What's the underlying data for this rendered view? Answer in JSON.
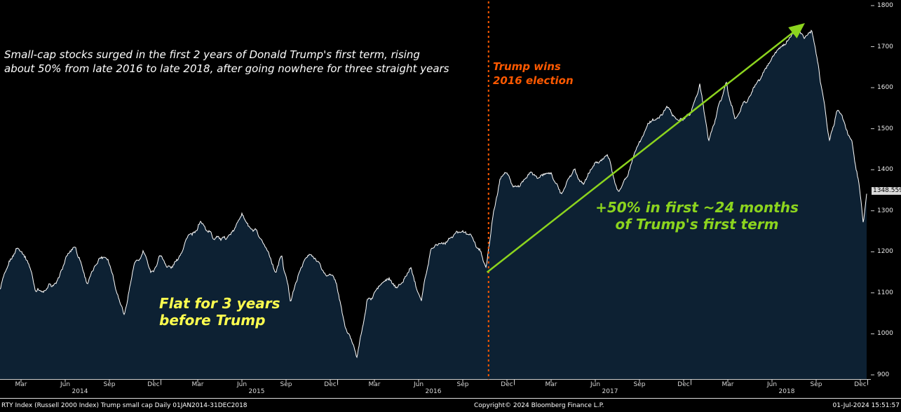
{
  "colors": {
    "background": "#000000",
    "area_fill": "#0d2133",
    "line": "#ffffff",
    "election": "#ff5900",
    "green": "#8cd41e",
    "yellow": "#ffff4f",
    "axis": "#d0d0d0"
  },
  "annotations": {
    "note": "Small-cap stocks surged in the first 2 years of Donald Trump's first term, rising\nabout 50% from late 2016 to late 2018, after going nowhere for three straight years",
    "election_label": "Trump wins\n2016 election",
    "surge_label": "+50% in first ~24 months\nof Trump's first term",
    "flat_label": "Flat for 3 years\nbefore Trump"
  },
  "footer": {
    "left": "RTY Index (Russell 2000 Index) Trump small cap  Daily 01JAN2014-31DEC2018",
    "center": "Copyright© 2024 Bloomberg Finance L.P.",
    "right": "01-Jul-2024 15:51:57"
  },
  "chart_data": {
    "type": "area",
    "title": "RTY Index (Russell 2000 Index) Trump small cap, Daily 01JAN2014-31DEC2018",
    "ylim": [
      900,
      1800
    ],
    "y_ticks": [
      900,
      1000,
      1100,
      1200,
      1300,
      1400,
      1500,
      1600,
      1700,
      1800
    ],
    "x_axis": {
      "quarter_labels": [
        "Mar",
        "Jun",
        "Sep",
        "Dec"
      ],
      "years": [
        "2014",
        "2015",
        "2016",
        "2017",
        "2018"
      ]
    },
    "election_month": 34.25,
    "arrow": {
      "from": [
        34.15,
        1150
      ],
      "to": [
        55.55,
        1752
      ]
    },
    "last_price": 1348.559,
    "last_price_label": "1348.559",
    "points_unit": "[months since Jan 2014, index value]",
    "points": [
      [
        0,
        1160
      ],
      [
        0.5,
        1181
      ],
      [
        1.0,
        1098
      ],
      [
        1.7,
        1183
      ],
      [
        2.2,
        1208
      ],
      [
        3.0,
        1173
      ],
      [
        3.5,
        1107
      ],
      [
        4.2,
        1102
      ],
      [
        5.0,
        1133
      ],
      [
        5.8,
        1190
      ],
      [
        6.2,
        1205
      ],
      [
        7.0,
        1112
      ],
      [
        7.8,
        1180
      ],
      [
        8.4,
        1172
      ],
      [
        9.0,
        1105
      ],
      [
        9.5,
        1042
      ],
      [
        10.2,
        1172
      ],
      [
        10.8,
        1190
      ],
      [
        11.3,
        1142
      ],
      [
        11.9,
        1200
      ],
      [
        12.4,
        1152
      ],
      [
        13.0,
        1175
      ],
      [
        13.8,
        1240
      ],
      [
        14.7,
        1262
      ],
      [
        15.5,
        1243
      ],
      [
        16.4,
        1228
      ],
      [
        17.5,
        1295
      ],
      [
        18.4,
        1245
      ],
      [
        19.3,
        1204
      ],
      [
        19.8,
        1152
      ],
      [
        20.2,
        1190
      ],
      [
        20.8,
        1083
      ],
      [
        21.5,
        1162
      ],
      [
        22.2,
        1200
      ],
      [
        23.0,
        1162
      ],
      [
        23.9,
        1132
      ],
      [
        24.5,
        1022
      ],
      [
        25.3,
        952
      ],
      [
        26.0,
        1082
      ],
      [
        26.8,
        1112
      ],
      [
        27.5,
        1142
      ],
      [
        28.3,
        1112
      ],
      [
        29.0,
        1162
      ],
      [
        29.7,
        1092
      ],
      [
        30.3,
        1202
      ],
      [
        31.0,
        1222
      ],
      [
        31.8,
        1242
      ],
      [
        32.5,
        1252
      ],
      [
        33.2,
        1238
      ],
      [
        33.8,
        1188
      ],
      [
        34.1,
        1158
      ],
      [
        34.6,
        1305
      ],
      [
        35.0,
        1372
      ],
      [
        35.4,
        1392
      ],
      [
        35.9,
        1357
      ],
      [
        36.5,
        1362
      ],
      [
        37.1,
        1396
      ],
      [
        37.6,
        1380
      ],
      [
        38.5,
        1392
      ],
      [
        39.2,
        1347
      ],
      [
        40.0,
        1400
      ],
      [
        40.7,
        1372
      ],
      [
        41.5,
        1416
      ],
      [
        42.3,
        1432
      ],
      [
        43.1,
        1352
      ],
      [
        43.8,
        1405
      ],
      [
        44.3,
        1452
      ],
      [
        45.0,
        1512
      ],
      [
        45.7,
        1522
      ],
      [
        46.4,
        1546
      ],
      [
        47.2,
        1518
      ],
      [
        47.9,
        1536
      ],
      [
        48.6,
        1608
      ],
      [
        49.2,
        1462
      ],
      [
        49.8,
        1542
      ],
      [
        50.4,
        1608
      ],
      [
        51.0,
        1512
      ],
      [
        51.6,
        1554
      ],
      [
        52.3,
        1602
      ],
      [
        53.0,
        1652
      ],
      [
        53.8,
        1692
      ],
      [
        54.4,
        1697
      ],
      [
        55.2,
        1742
      ],
      [
        55.7,
        1712
      ],
      [
        56.2,
        1732
      ],
      [
        56.7,
        1652
      ],
      [
        57.1,
        1552
      ],
      [
        57.4,
        1472
      ],
      [
        57.9,
        1542
      ],
      [
        58.4,
        1518
      ],
      [
        58.9,
        1472
      ],
      [
        59.4,
        1372
      ],
      [
        59.7,
        1266
      ],
      [
        59.95,
        1348.559
      ]
    ]
  }
}
